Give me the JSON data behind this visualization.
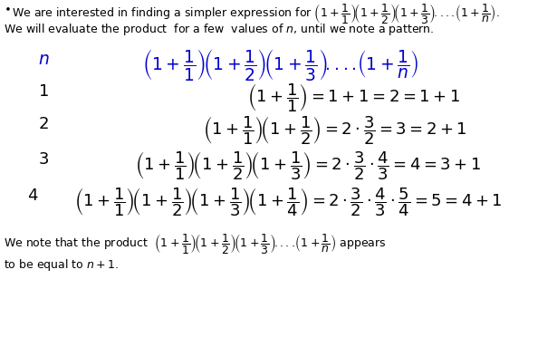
{
  "bg_color": "#ffffff",
  "text_color_black": "#000000",
  "text_color_blue": "#0000cd",
  "fs_text": 9.0,
  "fs_math_header": 13.5,
  "fs_math_rows": 13.0,
  "fs_footer": 9.0
}
